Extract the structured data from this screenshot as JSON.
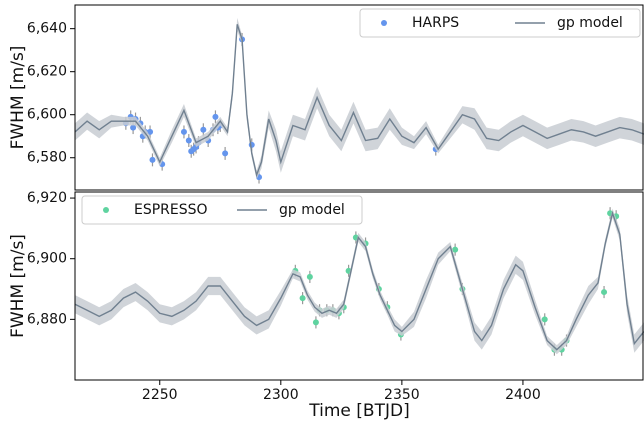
{
  "chart_data": [
    {
      "type": "scatter",
      "ylabel": "FWHM [m/s]",
      "xlim": [
        2215,
        2450
      ],
      "ylim": [
        6565,
        6651
      ],
      "yticks": [
        {
          "value": 6580,
          "label": "6,580"
        },
        {
          "value": 6600,
          "label": "6,600"
        },
        {
          "value": 6620,
          "label": "6,620"
        },
        {
          "value": 6640,
          "label": "6,640"
        }
      ],
      "legend": "upper right",
      "series": [
        {
          "name": "HARPS",
          "color": "#6495ed",
          "x": [
            2236,
            2238,
            2239,
            2240,
            2242,
            2243,
            2244,
            2246,
            2247,
            2251,
            2260,
            2262,
            2263,
            2264,
            2265,
            2266,
            2268,
            2270,
            2272,
            2273,
            2274,
            2275,
            2277,
            2284,
            2288,
            2291,
            2364
          ],
          "values": [
            6596,
            6599,
            6594,
            6598,
            6596,
            6590,
            6592,
            6592,
            6579,
            6577,
            6592,
            6588,
            6583,
            6584,
            6585,
            6587,
            6593,
            6588,
            6593,
            6599,
            6594,
            6595,
            6582,
            6635,
            6586,
            6571,
            6584
          ],
          "errors": [
            3,
            3,
            3,
            3,
            3,
            3,
            3,
            3,
            3,
            3,
            3,
            3,
            3,
            3,
            3,
            3,
            3,
            3,
            3,
            3,
            3,
            3,
            3,
            3,
            3,
            3,
            3
          ]
        },
        {
          "name": "gp model",
          "color": "#708090",
          "x": [
            2215,
            2220,
            2225,
            2230,
            2235,
            2240,
            2245,
            2250,
            2255,
            2260,
            2265,
            2270,
            2275,
            2278,
            2280,
            2282,
            2284,
            2286,
            2288,
            2290,
            2292,
            2295,
            2298,
            2300,
            2305,
            2310,
            2315,
            2320,
            2325,
            2330,
            2335,
            2340,
            2345,
            2350,
            2355,
            2360,
            2365,
            2370,
            2375,
            2380,
            2385,
            2390,
            2395,
            2400,
            2405,
            2410,
            2415,
            2420,
            2425,
            2430,
            2435,
            2440,
            2445,
            2450
          ],
          "values": [
            6592,
            6597,
            6593,
            6597,
            6597,
            6597,
            6590,
            6578,
            6590,
            6602,
            6587,
            6590,
            6597,
            6592,
            6610,
            6642,
            6635,
            6600,
            6582,
            6572,
            6578,
            6598,
            6588,
            6578,
            6595,
            6593,
            6608,
            6595,
            6588,
            6601,
            6588,
            6589,
            6598,
            6590,
            6587,
            6594,
            6584,
            6592,
            6600,
            6598,
            6589,
            6588,
            6592,
            6595,
            6592,
            6589,
            6591,
            6593,
            6592,
            6590,
            6592,
            6594,
            6593,
            6591
          ],
          "uncertainty": [
            4,
            4,
            4,
            3,
            2,
            2,
            2,
            2,
            3,
            3,
            2,
            2,
            2,
            2,
            3,
            3,
            2,
            3,
            2,
            2,
            3,
            4,
            5,
            5,
            5,
            5,
            5,
            5,
            5,
            5,
            5,
            5,
            5,
            4,
            3,
            3,
            2,
            3,
            4,
            5,
            5,
            5,
            5,
            5,
            5,
            5,
            5,
            5,
            5,
            5,
            5,
            5,
            5,
            5
          ]
        }
      ]
    },
    {
      "type": "scatter",
      "ylabel": "FWHM [m/s]",
      "xlabel": "Time [BTJD]",
      "xlim": [
        2215,
        2450
      ],
      "ylim": [
        6860,
        6922
      ],
      "xticks": [
        2250,
        2300,
        2350,
        2400
      ],
      "yticks": [
        {
          "value": 6880,
          "label": "6,880"
        },
        {
          "value": 6900,
          "label": "6,900"
        },
        {
          "value": 6920,
          "label": "6,920"
        }
      ],
      "legend": "upper left",
      "series": [
        {
          "name": "ESPRESSO",
          "color": "#5fd3a0",
          "x": [
            2306,
            2309,
            2312,
            2314.5,
            2316,
            2319,
            2321.5,
            2324,
            2326,
            2328,
            2331,
            2335,
            2340.5,
            2344,
            2349.6,
            2372,
            2375,
            2409,
            2413,
            2416,
            2418,
            2433.5,
            2436,
            2438.5
          ],
          "values": [
            6896,
            6887,
            6894,
            6879,
            6883,
            6883,
            6883,
            6882,
            6884,
            6896,
            6907,
            6905,
            6890,
            6884,
            6875,
            6903,
            6890,
            6880,
            6870,
            6870,
            6873,
            6889,
            6915,
            6914
          ],
          "errors": [
            2,
            2,
            2,
            2,
            2,
            2,
            2,
            2,
            2,
            2,
            2,
            2,
            2,
            2,
            2,
            2,
            2,
            2,
            2,
            2,
            2,
            2,
            2,
            2
          ]
        },
        {
          "name": "gp model",
          "color": "#708090",
          "x": [
            2215,
            2220,
            2225,
            2230,
            2235,
            2240,
            2245,
            2250,
            2255,
            2260,
            2265,
            2270,
            2275,
            2280,
            2285,
            2290,
            2295,
            2300,
            2305,
            2308,
            2311,
            2314,
            2317,
            2320,
            2323,
            2326,
            2329,
            2332,
            2335,
            2338,
            2341,
            2344,
            2347,
            2350,
            2355,
            2360,
            2365,
            2370,
            2375,
            2380,
            2383,
            2387,
            2392,
            2397,
            2400,
            2405,
            2410,
            2414,
            2418,
            2422,
            2427,
            2431,
            2434,
            2437,
            2440,
            2443,
            2446,
            2450
          ],
          "values": [
            6885,
            6883,
            6881,
            6883,
            6887,
            6889,
            6886,
            6882,
            6881,
            6883,
            6886,
            6891,
            6891,
            6886,
            6881,
            6878,
            6880,
            6887,
            6895,
            6894,
            6888,
            6884,
            6882,
            6883,
            6882,
            6885,
            6896,
            6907,
            6904,
            6895,
            6888,
            6883,
            6878,
            6876,
            6880,
            6890,
            6900,
            6904,
            6890,
            6876,
            6873,
            6878,
            6890,
            6898,
            6896,
            6884,
            6873,
            6870,
            6873,
            6880,
            6888,
            6892,
            6905,
            6915,
            6908,
            6885,
            6872,
            6876
          ],
          "uncertainty": [
            3,
            3,
            3,
            3,
            3,
            3,
            3,
            3,
            3,
            3,
            3,
            3,
            3,
            3,
            3,
            3,
            3,
            2.5,
            1.5,
            1.5,
            1.5,
            1.5,
            1.5,
            1.5,
            1.5,
            1.5,
            1.5,
            1.5,
            1.5,
            1.5,
            1.5,
            1.5,
            2,
            1.5,
            2.5,
            3,
            2,
            1.5,
            2,
            3,
            3,
            3,
            3,
            3,
            3,
            2.5,
            1.5,
            1.5,
            1.5,
            2.5,
            3,
            2,
            1.5,
            1.5,
            2,
            3,
            3,
            3
          ]
        }
      ]
    }
  ]
}
